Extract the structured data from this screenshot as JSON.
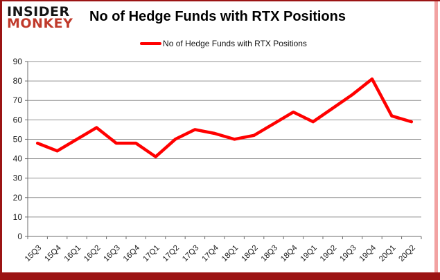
{
  "brand": {
    "line1": "INSIDER",
    "line2": "MONKEY",
    "color_line1": "#141414",
    "color_line2": "#c03a2b"
  },
  "header": {
    "title": "No of Hedge Funds with RTX Positions"
  },
  "legend": {
    "label": "No of Hedge Funds with RTX Positions",
    "line_color": "#ff0000"
  },
  "frame": {
    "border_dark": "#9b1414",
    "border_light": "#f2a2a2"
  },
  "chart_data": {
    "type": "line",
    "title": "No of Hedge Funds with RTX Positions",
    "categories": [
      "15Q3",
      "15Q4",
      "16Q1",
      "16Q2",
      "16Q3",
      "16Q4",
      "17Q1",
      "17Q2",
      "17Q3",
      "17Q4",
      "18Q1",
      "18Q2",
      "18Q3",
      "18Q4",
      "19Q1",
      "19Q2",
      "19Q3",
      "19Q4",
      "20Q1",
      "20Q2"
    ],
    "series": [
      {
        "name": "No of Hedge Funds with RTX Positions",
        "color": "#ff0000",
        "values": [
          48,
          44,
          50,
          56,
          48,
          48,
          41,
          50,
          55,
          53,
          50,
          52,
          58,
          64,
          59,
          66,
          73,
          81,
          62,
          59
        ]
      }
    ],
    "xlabel": "",
    "ylabel": "",
    "ylim": [
      0,
      90
    ],
    "ytick_step": 10,
    "grid": true,
    "legend_position": "top",
    "gridline_color": "#919191",
    "axis_color": "#6b6b6b",
    "label_color": "#1a1a1a"
  }
}
